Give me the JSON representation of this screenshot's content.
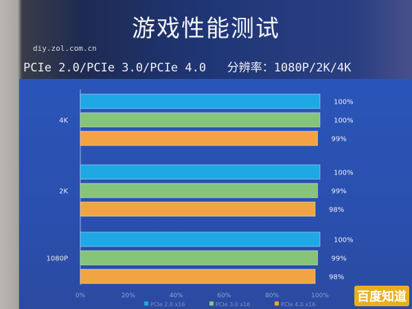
{
  "title": "游戏性能测试",
  "watermark": "diy.zol.com.cn",
  "subtitle": "PCIe 2.0/PCIe 3.0/PCIe 4.0   分辨率：1080P/2K/4K",
  "logo": "百度知道",
  "chart_data": {
    "type": "bar",
    "orientation": "horizontal",
    "categories": [
      "4K",
      "2K",
      "1080P"
    ],
    "series": [
      {
        "name": "PCIe 2.0 x16",
        "color": "#1fa8e6",
        "values": [
          100,
          100,
          100
        ]
      },
      {
        "name": "PCIe 3.0 x16",
        "color": "#86c47c",
        "values": [
          100,
          99,
          99
        ]
      },
      {
        "name": "PCIe 4.0 x16",
        "color": "#f2a444",
        "values": [
          99,
          98,
          98
        ]
      }
    ],
    "data_labels": [
      [
        "100%",
        "100%",
        "99%"
      ],
      [
        "100%",
        "99%",
        "98%"
      ],
      [
        "100%",
        "99%",
        "98%"
      ]
    ],
    "xlim": [
      0,
      100
    ],
    "xticks": [
      "0%",
      "20%",
      "40%",
      "60%",
      "80%",
      "100%"
    ],
    "legend": "bottom",
    "grid": false
  }
}
